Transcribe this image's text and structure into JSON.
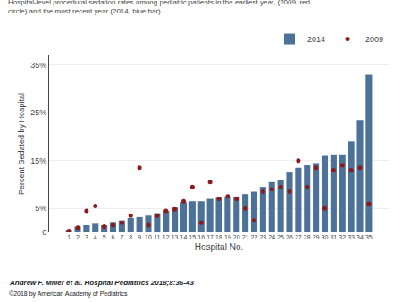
{
  "chart_data": {
    "type": "bar",
    "title": "Hospital-level procedural sedation rates among pediatric patients in the earliest year, (2009, red",
    "subtitle": "circle) and the most recent year (2014, blue bar).",
    "xlabel": "Hospital No.",
    "ylabel": "Percent Sedated by Hospital",
    "annotations": [
      "Andrew F. Miller et al. Hospital Pediatrics 2018;8:36-43",
      "©2018 by American Academy of Pediatrics"
    ],
    "categories": [
      1,
      2,
      3,
      4,
      5,
      6,
      7,
      8,
      9,
      10,
      11,
      12,
      13,
      14,
      15,
      16,
      17,
      18,
      19,
      20,
      21,
      22,
      23,
      24,
      25,
      26,
      27,
      28,
      29,
      30,
      31,
      32,
      33,
      34,
      35
    ],
    "series": [
      {
        "name": "2014",
        "type": "bar",
        "color": "#4d7299",
        "values": [
          0.5,
          1.2,
          1.5,
          1.8,
          1.5,
          2.0,
          2.5,
          3.0,
          3.2,
          3.5,
          4.0,
          4.5,
          5.2,
          6.3,
          6.5,
          6.5,
          7.0,
          7.2,
          7.5,
          7.5,
          8.0,
          8.5,
          9.5,
          10.5,
          11.0,
          12.5,
          13.5,
          14.0,
          14.5,
          16.0,
          16.3,
          16.3,
          19.0,
          23.5,
          33.0
        ]
      },
      {
        "name": "2009",
        "type": "scatter",
        "marker": "circle",
        "color": "#8b1a1a",
        "values": [
          0.3,
          1.0,
          4.5,
          5.5,
          1.2,
          1.5,
          2.0,
          3.5,
          13.5,
          1.5,
          3.5,
          4.5,
          4.8,
          6.5,
          9.5,
          2.0,
          10.5,
          7.0,
          7.5,
          7.0,
          5.0,
          2.5,
          8.5,
          9.0,
          9.5,
          8.5,
          15.0,
          9.5,
          13.5,
          5.0,
          13.0,
          14.0,
          13.0,
          13.5,
          6.0
        ]
      }
    ],
    "ylim": [
      0,
      37
    ],
    "yticks": [
      0,
      {
        "value": 5,
        "label": "5%"
      },
      {
        "value": 15,
        "label": "15%"
      },
      {
        "value": 25,
        "label": "25%"
      },
      {
        "value": 35,
        "label": "35%"
      }
    ],
    "grid": true,
    "legend": "upper right"
  }
}
